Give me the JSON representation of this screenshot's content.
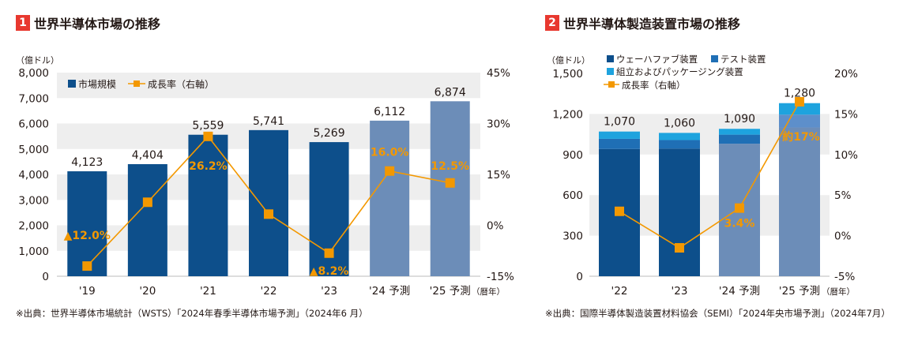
{
  "colors": {
    "accent_red": "#e8382f",
    "bar_actual": "#0d4f8b",
    "bar_forecast": "#6c8db8",
    "line": "#f39800",
    "grid_band": "#eeeeee",
    "seg_test": "#1f6fb5",
    "seg_package": "#1ea3de"
  },
  "chart1": {
    "number": "1",
    "title": "世界半導体市場の推移",
    "source": "※出典：世界半導体市場統計（WSTS）「2024年春季半導体市場予測」（2024年6 月）",
    "left_unit": "（億ドル）",
    "year_unit": "（暦年）",
    "legend": {
      "bar": "市場規模",
      "line": "成長率（右軸）"
    }
  },
  "chart2": {
    "number": "2",
    "title": "世界半導体製造装置市場の推移",
    "source": "※出典：国際半導体製造装置材料協会（SEMI）「2024年央市場予測」（2024年7月）",
    "left_unit": "（億ドル）",
    "year_unit": "（暦年）",
    "legend": {
      "wafer": "ウェーハファブ装置",
      "test": "テスト装置",
      "package": "組立およびパッケージング装置",
      "line": "成長率（右軸）"
    }
  },
  "chart_data": [
    {
      "type": "bar",
      "title": "世界半導体市場の推移",
      "categories": [
        "'19",
        "'20",
        "'21",
        "'22",
        "'23",
        "'24 予測",
        "'25 予測"
      ],
      "series": [
        {
          "name": "市場規模",
          "values": [
            4123,
            4404,
            5559,
            5741,
            5269,
            6112,
            6874
          ],
          "labels": [
            "4,123",
            "4,404",
            "5,559",
            "5,741",
            "5,269",
            "6,112",
            "6,874"
          ],
          "forecast": [
            false,
            false,
            false,
            false,
            false,
            true,
            true
          ]
        },
        {
          "name": "成長率（右軸）",
          "type": "line",
          "axis": "right",
          "values": [
            -12.0,
            6.8,
            26.2,
            3.3,
            -8.2,
            16.0,
            12.5
          ],
          "labels": [
            "▲12.0%",
            "",
            "26.2%",
            "",
            "▲8.2%",
            "16.0%",
            "12.5%"
          ]
        }
      ],
      "yleft": {
        "ylim": [
          0,
          8000
        ],
        "ticks": [
          0,
          1000,
          2000,
          3000,
          4000,
          5000,
          6000,
          7000,
          8000
        ],
        "tick_labels": [
          "0",
          "1,000",
          "2,000",
          "3,000",
          "4,000",
          "5,000",
          "6,000",
          "7,000",
          "8,000"
        ]
      },
      "yright": {
        "ylim": [
          -15,
          45
        ],
        "ticks": [
          -15,
          0,
          15,
          30,
          45
        ],
        "tick_labels": [
          "-15%",
          "0%",
          "15%",
          "30%",
          "45%"
        ]
      },
      "grid": "alternating bands",
      "legend_position": "top-left"
    },
    {
      "type": "bar",
      "stacked": true,
      "title": "世界半導体製造装置市場の推移",
      "categories": [
        "'22",
        "'23",
        "'24 予測",
        "'25 予測"
      ],
      "totals": [
        1070,
        1060,
        1090,
        1280
      ],
      "total_labels": [
        "1,070",
        "1,060",
        "1,090",
        "1,280"
      ],
      "forecast": [
        false,
        false,
        true,
        true
      ],
      "series": [
        {
          "name": "ウェーハファブ装置",
          "values": [
            941,
            944,
            980,
            1100
          ]
        },
        {
          "name": "テスト装置",
          "values": [
            75,
            63,
            67,
            95
          ]
        },
        {
          "name": "組立およびパッケージング装置",
          "values": [
            54,
            53,
            43,
            85
          ]
        },
        {
          "name": "成長率（右軸）",
          "type": "line",
          "axis": "right",
          "values": [
            3.0,
            -1.5,
            3.4,
            16.5
          ],
          "labels": [
            "",
            "",
            "3.4%",
            "約17%"
          ]
        }
      ],
      "yleft": {
        "ylim": [
          0,
          1500
        ],
        "ticks": [
          0,
          300,
          600,
          900,
          1200,
          1500
        ],
        "tick_labels": [
          "0",
          "300",
          "600",
          "900",
          "1,200",
          "1,500"
        ]
      },
      "yright": {
        "ylim": [
          -5,
          20
        ],
        "ticks": [
          -5,
          0,
          5,
          10,
          15,
          20
        ],
        "tick_labels": [
          "-5%",
          "0%",
          "5%",
          "10%",
          "15%",
          "20%"
        ]
      },
      "grid": "alternating bands",
      "legend_position": "top-left"
    }
  ]
}
